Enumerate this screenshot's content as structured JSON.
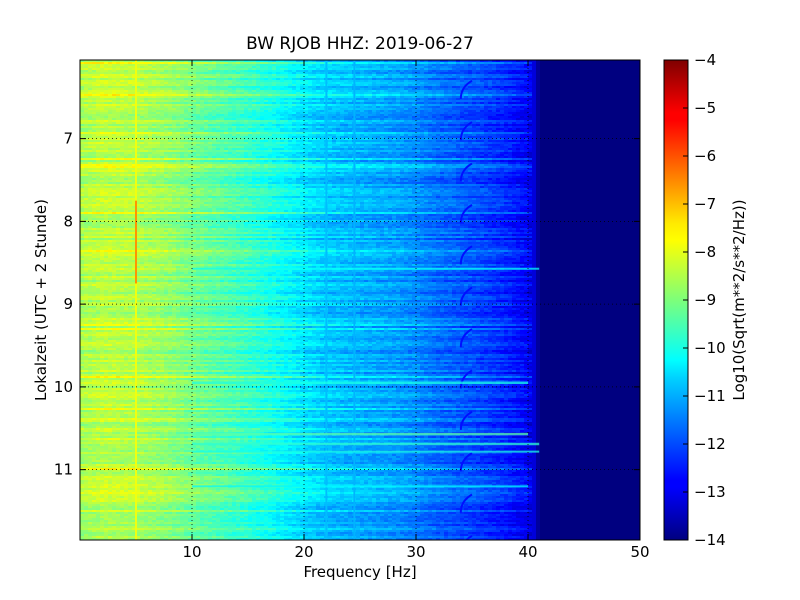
{
  "chart_data": {
    "type": "heatmap",
    "title": "BW RJOB HHZ: 2019-06-27",
    "xlabel": "Frequency [Hz]",
    "ylabel": "Lokalzeit (UTC + 2 Stunde)",
    "colorbar_label": "Log10(Sqrt(m**2/s**2/Hz))",
    "xlim": [
      0,
      50
    ],
    "ylim": [
      6.05,
      11.85
    ],
    "y_inverted": true,
    "clim": [
      -14,
      -4
    ],
    "colormap": "jet",
    "x_ticks": [
      10,
      20,
      30,
      40,
      50
    ],
    "x_tick_labels": [
      "10",
      "20",
      "30",
      "40",
      "50"
    ],
    "y_ticks": [
      7,
      8,
      9,
      10,
      11
    ],
    "y_tick_labels": [
      "7",
      "8",
      "9",
      "10",
      "11"
    ],
    "colorbar_ticks": [
      -4,
      -5,
      -6,
      -7,
      -8,
      -9,
      -10,
      -11,
      -12,
      -13,
      -14
    ],
    "colorbar_tick_labels": [
      "−4",
      "−5",
      "−6",
      "−7",
      "−8",
      "−9",
      "−10",
      "−11",
      "−12",
      "−13",
      "−14"
    ],
    "grid": true,
    "grid_style": "dotted",
    "frequency_profile": {
      "freq_hz": [
        0,
        2,
        5,
        8,
        10,
        15,
        20,
        22,
        25,
        28,
        30,
        32,
        35,
        38,
        40,
        40.7,
        41,
        45,
        50
      ],
      "log10_psd": [
        -8.6,
        -8.4,
        -8.5,
        -8.8,
        -9.1,
        -9.7,
        -10.5,
        -10.8,
        -11.0,
        -11.2,
        -11.4,
        -11.7,
        -12.0,
        -12.4,
        -12.8,
        -13.2,
        -14,
        -14,
        -14
      ]
    },
    "features": [
      {
        "kind": "narrowband_line",
        "freq_hz": 5.0,
        "time_start": 6.05,
        "time_end": 11.85,
        "log10_psd": -7.9
      },
      {
        "kind": "narrowband_line",
        "freq_hz": 5.0,
        "time_start": 7.75,
        "time_end": 8.75,
        "log10_psd": -6.7
      },
      {
        "kind": "narrowband_line",
        "freq_hz": 22.0,
        "time_start": 6.05,
        "time_end": 11.85,
        "log10_psd": -10.9
      },
      {
        "kind": "narrowband_line",
        "freq_hz": 24.5,
        "time_start": 6.05,
        "time_end": 11.85,
        "log10_psd": -11.0
      },
      {
        "kind": "gliding_tone",
        "freq_hz_start": 34.0,
        "freq_hz_end": 35.0,
        "repeat_interval_h": 0.5,
        "first_time": 6.3,
        "length_h": 0.22,
        "log10_psd": -12.6
      },
      {
        "kind": "broadband_band",
        "time": 10.57,
        "thickness_h": 0.03,
        "freq_hz_max": 40,
        "log10_psd": -9.4
      },
      {
        "kind": "broadband_band",
        "time": 10.69,
        "thickness_h": 0.03,
        "freq_hz_max": 41,
        "log10_psd": -9.8
      },
      {
        "kind": "broadband_band",
        "time": 10.78,
        "thickness_h": 0.02,
        "freq_hz_max": 41,
        "log10_psd": -10.0
      },
      {
        "kind": "broadband_band",
        "time": 8.57,
        "thickness_h": 0.02,
        "freq_hz_max": 41,
        "log10_psd": -10.2
      },
      {
        "kind": "broadband_band",
        "time": 9.95,
        "thickness_h": 0.03,
        "freq_hz_max": 40,
        "log10_psd": -10.0
      },
      {
        "kind": "broadband_band",
        "time": 11.2,
        "thickness_h": 0.02,
        "freq_hz_max": 40,
        "log10_psd": -10.3
      }
    ]
  }
}
